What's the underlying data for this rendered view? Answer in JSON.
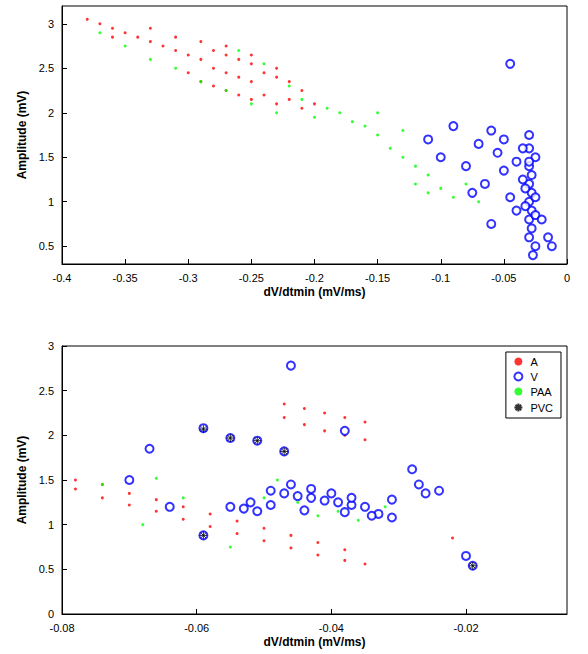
{
  "chart_data": [
    {
      "type": "scatter",
      "xlabel": "dV/dtmin (mV/ms)",
      "ylabel": "Amplitude (mV)",
      "xlim": [
        -0.4,
        0
      ],
      "xticks": [
        -0.4,
        -0.35,
        -0.3,
        -0.25,
        -0.2,
        -0.15,
        -0.1,
        -0.05,
        0
      ],
      "ylim": [
        0.3,
        3.2
      ],
      "yticks": [
        0.5,
        1,
        1.5,
        2,
        2.5,
        3
      ],
      "grid": false,
      "series": [
        {
          "name": "A",
          "color": "#ff0000",
          "marker": "point",
          "x": [
            -0.38,
            -0.37,
            -0.36,
            -0.35,
            -0.34,
            -0.33,
            -0.32,
            -0.31,
            -0.3,
            -0.3,
            -0.29,
            -0.29,
            -0.28,
            -0.28,
            -0.28,
            -0.27,
            -0.27,
            -0.27,
            -0.26,
            -0.26,
            -0.26,
            -0.25,
            -0.25,
            -0.25,
            -0.24,
            -0.24,
            -0.23,
            -0.23,
            -0.22,
            -0.22,
            -0.21,
            -0.21,
            -0.2,
            -0.33,
            -0.31,
            -0.29,
            -0.27,
            -0.25,
            -0.23,
            -0.36
          ],
          "values": [
            3.05,
            3.0,
            2.95,
            2.9,
            2.85,
            2.8,
            2.75,
            2.7,
            2.65,
            2.45,
            2.6,
            2.35,
            2.7,
            2.5,
            2.3,
            2.65,
            2.45,
            2.25,
            2.6,
            2.4,
            2.2,
            2.55,
            2.35,
            2.15,
            2.45,
            2.2,
            2.4,
            2.1,
            2.35,
            2.15,
            2.25,
            2.05,
            2.1,
            2.95,
            2.85,
            2.8,
            2.75,
            2.65,
            2.5,
            2.85
          ]
        },
        {
          "name": "V",
          "color": "#0000ff",
          "marker": "circle",
          "x": [
            -0.03,
            -0.03,
            -0.03,
            -0.03,
            -0.03,
            -0.03,
            -0.03,
            -0.028,
            -0.028,
            -0.028,
            -0.028,
            -0.025,
            -0.025,
            -0.025,
            -0.025,
            -0.033,
            -0.033,
            -0.035,
            -0.035,
            -0.04,
            -0.04,
            -0.045,
            -0.05,
            -0.05,
            -0.055,
            -0.06,
            -0.065,
            -0.07,
            -0.08,
            -0.09,
            -0.1,
            -0.11,
            -0.045,
            -0.02,
            -0.015,
            -0.012,
            -0.027,
            -0.03,
            -0.06,
            -0.075
          ],
          "values": [
            0.6,
            0.8,
            1.0,
            1.2,
            1.4,
            1.6,
            1.75,
            0.7,
            0.9,
            1.1,
            1.3,
            0.5,
            0.85,
            1.05,
            1.5,
            1.15,
            0.95,
            1.25,
            1.6,
            1.45,
            0.9,
            2.55,
            1.35,
            1.7,
            1.55,
            1.8,
            1.2,
            1.65,
            1.4,
            1.85,
            1.5,
            1.7,
            1.05,
            0.8,
            0.6,
            0.5,
            0.4,
            1.45,
            0.75,
            1.1
          ]
        },
        {
          "name": "PAA",
          "color": "#00ff00",
          "marker": "point",
          "x": [
            -0.37,
            -0.35,
            -0.33,
            -0.31,
            -0.29,
            -0.27,
            -0.26,
            -0.25,
            -0.24,
            -0.23,
            -0.22,
            -0.21,
            -0.2,
            -0.19,
            -0.18,
            -0.17,
            -0.16,
            -0.15,
            -0.15,
            -0.14,
            -0.13,
            -0.13,
            -0.12,
            -0.12,
            -0.11,
            -0.11,
            -0.1,
            -0.09,
            -0.08,
            -0.07
          ],
          "values": [
            2.9,
            2.75,
            2.6,
            2.5,
            2.35,
            2.25,
            2.7,
            2.1,
            2.55,
            2.0,
            2.3,
            2.15,
            1.95,
            2.05,
            2.0,
            1.9,
            1.85,
            1.75,
            2.0,
            1.6,
            1.5,
            1.8,
            1.4,
            1.2,
            1.1,
            1.3,
            1.15,
            1.05,
            1.2,
            1.0
          ]
        }
      ]
    },
    {
      "type": "scatter",
      "xlabel": "dV/dtmin (mV/ms)",
      "ylabel": "Amplitude (mV)",
      "xlim": [
        -0.08,
        -0.005
      ],
      "xticks": [
        -0.08,
        -0.06,
        -0.04,
        -0.02
      ],
      "ylim": [
        0,
        3
      ],
      "yticks": [
        0,
        0.5,
        1,
        1.5,
        2,
        2.5,
        3
      ],
      "grid": false,
      "legend": "upper right",
      "series": [
        {
          "name": "A",
          "color": "#ff0000",
          "marker": "point",
          "x": [
            -0.078,
            -0.078,
            -0.074,
            -0.074,
            -0.07,
            -0.07,
            -0.066,
            -0.066,
            -0.062,
            -0.062,
            -0.058,
            -0.058,
            -0.054,
            -0.054,
            -0.05,
            -0.05,
            -0.046,
            -0.046,
            -0.042,
            -0.042,
            -0.038,
            -0.038,
            -0.035,
            -0.047,
            -0.047,
            -0.044,
            -0.044,
            -0.041,
            -0.041,
            -0.038,
            -0.038,
            -0.035,
            -0.035,
            -0.022
          ],
          "values": [
            1.5,
            1.4,
            1.45,
            1.3,
            1.35,
            1.22,
            1.28,
            1.15,
            1.2,
            1.06,
            1.12,
            0.98,
            1.04,
            0.9,
            0.96,
            0.82,
            0.88,
            0.74,
            0.8,
            0.66,
            0.72,
            0.6,
            0.56,
            2.35,
            2.2,
            2.3,
            2.12,
            2.25,
            2.05,
            2.2,
            2.0,
            2.15,
            1.95,
            0.85
          ]
        },
        {
          "name": "V",
          "color": "#0000ff",
          "marker": "circle",
          "x": [
            -0.055,
            -0.053,
            -0.051,
            -0.049,
            -0.047,
            -0.045,
            -0.043,
            -0.041,
            -0.039,
            -0.037,
            -0.035,
            -0.033,
            -0.031,
            -0.049,
            -0.046,
            -0.043,
            -0.04,
            -0.037,
            -0.034,
            -0.052,
            -0.044,
            -0.038,
            -0.067,
            -0.046,
            -0.07,
            -0.064,
            -0.059,
            -0.055,
            -0.051,
            -0.047,
            -0.059,
            -0.019,
            -0.027,
            -0.026,
            -0.02,
            -0.028,
            -0.038,
            -0.031,
            -0.024
          ],
          "values": [
            1.2,
            1.18,
            1.15,
            1.38,
            1.35,
            1.32,
            1.3,
            1.27,
            1.25,
            1.22,
            1.2,
            1.12,
            1.08,
            1.22,
            1.45,
            1.4,
            1.35,
            1.3,
            1.1,
            1.25,
            1.16,
            1.14,
            1.85,
            2.78,
            1.5,
            1.2,
            2.08,
            1.97,
            1.94,
            1.82,
            0.88,
            0.54,
            1.45,
            1.35,
            0.65,
            1.62,
            2.05,
            1.28,
            1.38
          ]
        },
        {
          "name": "PAA",
          "color": "#00ff00",
          "marker": "point",
          "x": [
            -0.074,
            -0.068,
            -0.062,
            -0.05,
            -0.045,
            -0.042,
            -0.039,
            -0.036,
            -0.032,
            -0.048,
            -0.066,
            -0.055
          ],
          "values": [
            1.45,
            1.0,
            1.3,
            1.3,
            1.25,
            1.1,
            1.15,
            1.05,
            1.2,
            1.5,
            1.52,
            0.75
          ]
        },
        {
          "name": "PVC",
          "color": "#000000",
          "marker": "asterisk",
          "x": [
            -0.059,
            -0.055,
            -0.051,
            -0.047,
            -0.059,
            -0.019
          ],
          "values": [
            2.07,
            1.97,
            1.94,
            1.82,
            0.88,
            0.54
          ]
        }
      ]
    }
  ]
}
